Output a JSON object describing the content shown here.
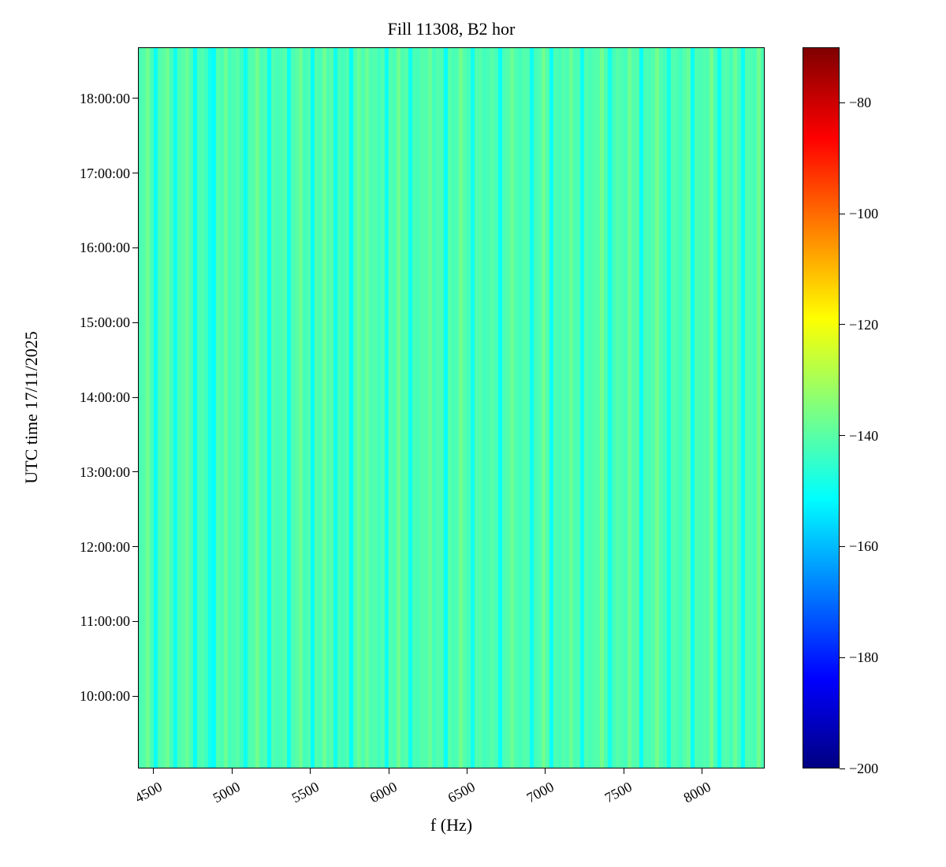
{
  "colors": {
    "background": "#ffffff",
    "spine": "#000000",
    "text": "#000000"
  },
  "chart_data": {
    "type": "heatmap",
    "title": "Fill 11308, B2 hor",
    "xlabel": "f (Hz)",
    "ylabel": "UTC time 17/11/2025",
    "colormap": "jet",
    "value_unit": "dB",
    "pattern": "vertical stripes, values nearly constant along the time axis",
    "x_axis": {
      "min_hz": 4400,
      "max_hz": 8400,
      "tick_hz": [
        4500,
        5000,
        5500,
        6000,
        6500,
        7000,
        7500,
        8000
      ],
      "tick_labels": [
        "4500",
        "5000",
        "5500",
        "6000",
        "6500",
        "7000",
        "7500",
        "8000"
      ]
    },
    "y_axis": {
      "top_hour": 18.683,
      "bottom_hour": 9.033,
      "tick_hours": [
        18,
        17,
        16,
        15,
        14,
        13,
        12,
        11,
        10
      ],
      "tick_labels": [
        "18:00:00",
        "17:00:00",
        "16:00:00",
        "15:00:00",
        "14:00:00",
        "13:00:00",
        "12:00:00",
        "11:00:00",
        "10:00:00"
      ]
    },
    "colorbar": {
      "vmin": -200,
      "vmax": -70,
      "tick_values": [
        -80,
        -100,
        -120,
        -140,
        -160,
        -180,
        -200
      ],
      "tick_labels": [
        "−80",
        "−100",
        "−120",
        "−140",
        "−160",
        "−180",
        "−200"
      ]
    },
    "columns_hz_start": 4400,
    "columns_hz_step": 25,
    "columns_db": [
      -141.8,
      -140.5,
      -136.9,
      -142.3,
      -150.2,
      -141.1,
      -139.8,
      -137.2,
      -142.6,
      -149.5,
      -141.3,
      -140.2,
      -137.8,
      -142.1,
      -150.8,
      -141.6,
      -140.9,
      -143.2,
      -149.1,
      -151.0,
      -140.4,
      -141.9,
      -137.5,
      -142.8,
      -141.2,
      -140.1,
      -143.5,
      -149.8,
      -141.4,
      -140.7,
      -136.5,
      -142.2,
      -141.0,
      -150.4,
      -140.8,
      -142.5,
      -141.7,
      -139.9,
      -149.9,
      -141.5,
      -140.3,
      -137.1,
      -142.9,
      -141.1,
      -150.6,
      -140.6,
      -142.4,
      -136.8,
      -141.9,
      -140.2,
      -149.3,
      -141.6,
      -142.7,
      -140.9,
      -151.2,
      -141.3,
      -138.0,
      -142.0,
      -137.4,
      -141.8,
      -140.5,
      -143.1,
      -141.0,
      -150.1,
      -140.8,
      -142.3,
      -136.6,
      -141.5,
      -140.1,
      -149.6,
      -141.9,
      -142.6,
      -140.4,
      -141.2,
      -137.9,
      -142.8,
      -140.7,
      -141.6,
      -150.9,
      -140.3,
      -142.1,
      -141.4,
      -136.3,
      -140.9,
      -142.5,
      -149.4,
      -141.1,
      -140.6,
      -143.0,
      -141.8,
      -140.2,
      -142.2,
      -150.5,
      -141.7,
      -140.8,
      -137.6,
      -141.3,
      -142.9,
      -140.5,
      -141.0,
      -149.7,
      -142.4,
      -141.6,
      -136.7,
      -140.9,
      -150.3,
      -141.2,
      -142.7,
      -140.4,
      -141.9,
      -137.3,
      -142.0,
      -141.5,
      -150.0,
      -140.7,
      -142.3,
      -141.1,
      -140.8,
      -136.4,
      -141.7,
      -149.2,
      -142.6,
      -140.3,
      -141.4,
      -142.8,
      -137.0,
      -141.0,
      -140.6,
      -150.7,
      -141.8,
      -142.2,
      -140.9,
      -136.2,
      -141.3,
      -142.5,
      -149.0,
      -140.5,
      -141.6,
      -143.3,
      -140.1,
      -137.7,
      -150.4,
      -141.2,
      -142.0,
      -140.8,
      -141.5,
      -136.1,
      -142.4,
      -149.8,
      -141.0,
      -140.4,
      -142.7,
      -137.5,
      -141.9,
      -150.2,
      -140.6,
      -141.3,
      -142.1,
      -136.6,
      -141.7
    ]
  }
}
